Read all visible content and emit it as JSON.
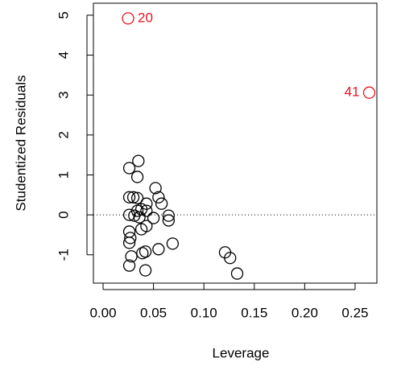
{
  "chart_data": {
    "type": "scatter",
    "xlabel": "Leverage",
    "ylabel": "Studentized Residuals",
    "x": [
      0.0248,
      0.264,
      0.035,
      0.026,
      0.034,
      0.052,
      0.055,
      0.026,
      0.03,
      0.034,
      0.058,
      0.043,
      0.038,
      0.043,
      0.034,
      0.026,
      0.031,
      0.036,
      0.065,
      0.065,
      0.05,
      0.043,
      0.038,
      0.026,
      0.027,
      0.026,
      0.069,
      0.055,
      0.042,
      0.039,
      0.028,
      0.121,
      0.126,
      0.026,
      0.042,
      0.133
    ],
    "y": [
      4.92,
      3.06,
      1.35,
      1.17,
      0.95,
      0.67,
      0.44,
      0.44,
      0.44,
      0.42,
      0.28,
      0.28,
      0.14,
      0.1,
      0.1,
      0.0,
      -0.02,
      -0.06,
      -0.02,
      -0.14,
      -0.08,
      -0.28,
      -0.36,
      -0.42,
      -0.58,
      -0.7,
      -0.72,
      -0.86,
      -0.92,
      -0.96,
      -1.04,
      -0.94,
      -1.08,
      -1.27,
      -1.39,
      -1.47
    ],
    "colors": [
      "#e8141f",
      "#e8141f",
      "#000000",
      "#000000",
      "#000000",
      "#000000",
      "#000000",
      "#000000",
      "#000000",
      "#000000",
      "#000000",
      "#000000",
      "#000000",
      "#000000",
      "#000000",
      "#000000",
      "#000000",
      "#000000",
      "#000000",
      "#000000",
      "#000000",
      "#000000",
      "#000000",
      "#000000",
      "#000000",
      "#000000",
      "#000000",
      "#000000",
      "#000000",
      "#000000",
      "#000000",
      "#000000",
      "#000000",
      "#000000",
      "#000000",
      "#000000"
    ],
    "point_labels": [
      "20",
      "41",
      null,
      null,
      null,
      null,
      null,
      null,
      null,
      null,
      null,
      null,
      null,
      null,
      null,
      null,
      null,
      null,
      null,
      null,
      null,
      null,
      null,
      null,
      null,
      null,
      null,
      null,
      null,
      null,
      null,
      null,
      null,
      null,
      null,
      null
    ],
    "xlim": [
      -0.0096,
      0.2716
    ],
    "ylim": [
      -1.71,
      5.3
    ],
    "xticks": [
      {
        "value": 0,
        "label": "0.00"
      },
      0.05,
      {
        "value": 0.1,
        "label": "0.10"
      },
      0.15,
      {
        "value": 0.2,
        "label": "0.20"
      },
      0.25
    ],
    "yticks": [
      -1,
      0,
      1,
      2,
      3,
      4,
      5
    ],
    "hline": 0
  }
}
